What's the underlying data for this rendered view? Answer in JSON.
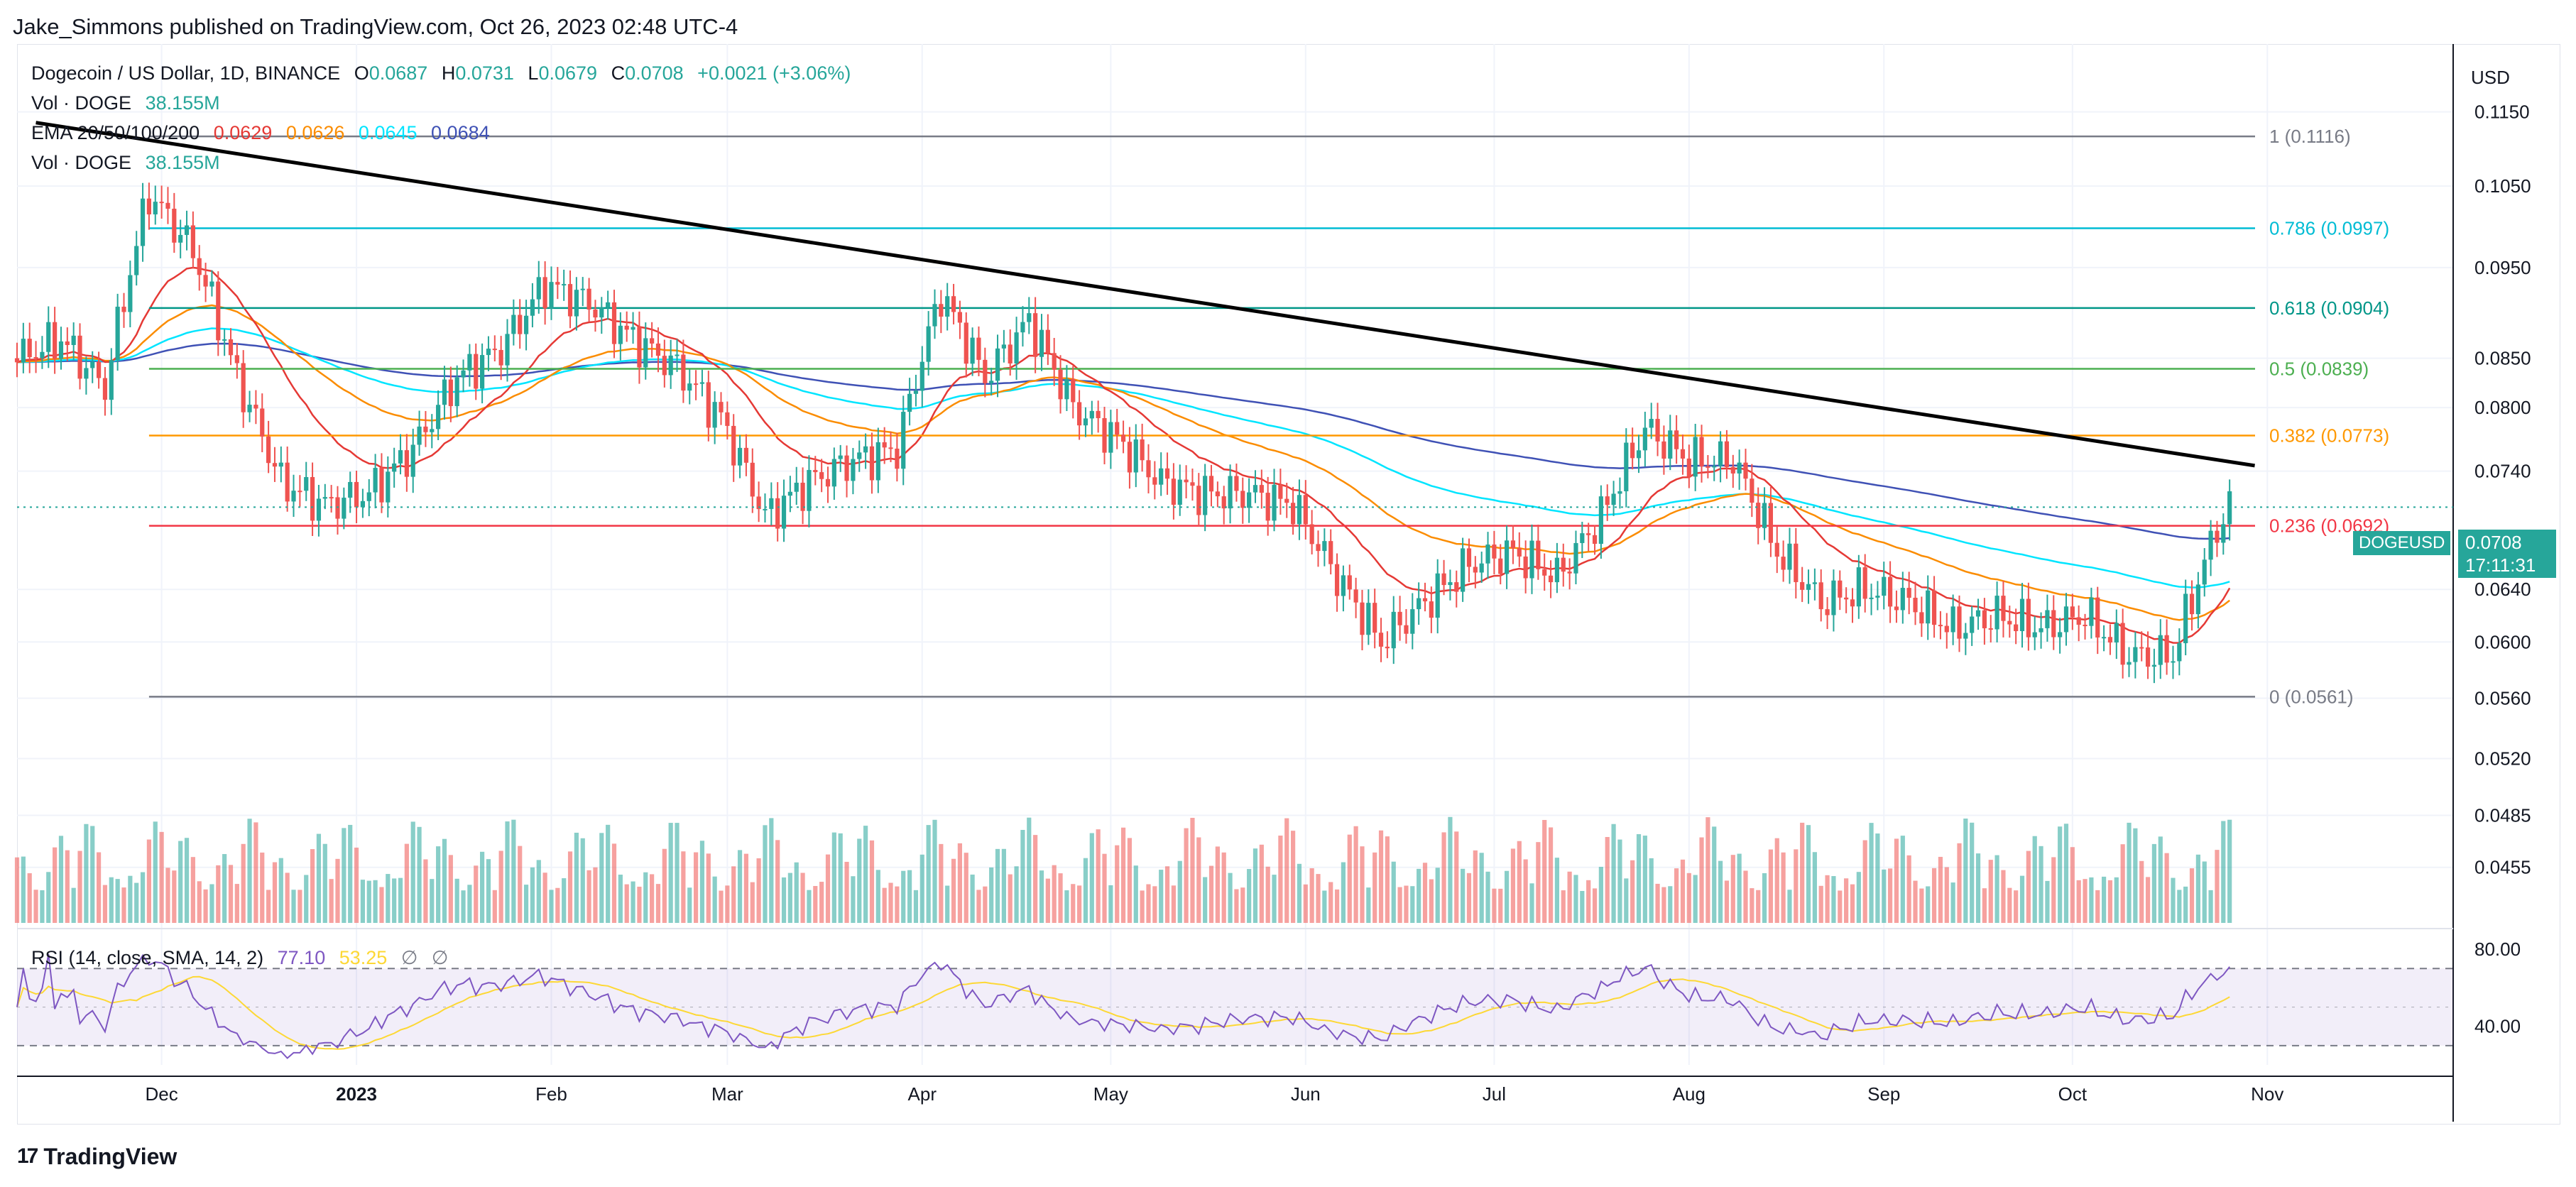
{
  "header": {
    "publisher": "Jake_Simmons published on TradingView.com, Oct 26, 2023 02:48 UTC-4"
  },
  "legend": {
    "symbol": "Dogecoin / US Dollar, 1D, BINANCE",
    "open_label": "O",
    "open": "0.0687",
    "high_label": "H",
    "high": "0.0731",
    "low_label": "L",
    "low": "0.0679",
    "close_label": "C",
    "close": "0.0708",
    "change": "+0.0021 (+3.06%)",
    "vol_label": "Vol · DOGE",
    "vol_value": "38.155M",
    "ema_label": "EMA 20/50/100/200",
    "ema20": "0.0629",
    "ema50": "0.0626",
    "ema100": "0.0645",
    "ema200": "0.0684",
    "rsi_label": "RSI (14, close, SMA, 14, 2)",
    "rsi_value": "77.10",
    "rsi_sma": "53.25",
    "na1": "∅",
    "na2": "∅"
  },
  "axis": {
    "currency": "USD",
    "price_badge_symbol": "DOGEUSD",
    "price_badge_value": "0.0708",
    "price_badge_countdown": "17:11:31"
  },
  "footer": {
    "brand": "TradingView",
    "logo_glyph": "17"
  },
  "colors": {
    "up": "#26a69a",
    "down": "#ef5350",
    "ema20": "#e53935",
    "ema50": "#fb8c00",
    "ema100": "#00e5ff",
    "ema200": "#3f51b5",
    "rsi": "#7e57c2",
    "rsi_sma": "#fdd835",
    "trendline": "#000000"
  },
  "chart_data": {
    "type": "candlestick",
    "title": "Dogecoin / US Dollar, 1D, BINANCE",
    "yscale": "log",
    "ylim": [
      0.0425,
      0.125
    ],
    "y_ticks": [
      "0.1150",
      "0.1050",
      "0.0950",
      "0.0850",
      "0.0800",
      "0.0740",
      "0.0640",
      "0.0600",
      "0.0560",
      "0.0520",
      "0.0485",
      "0.0455"
    ],
    "x_ticks": [
      {
        "label": "Dec",
        "date": "2022-12-01"
      },
      {
        "label": "2023",
        "date": "2023-01-01",
        "bold": true
      },
      {
        "label": "Feb",
        "date": "2023-02-01"
      },
      {
        "label": "Mar",
        "date": "2023-03-01"
      },
      {
        "label": "Apr",
        "date": "2023-04-01"
      },
      {
        "label": "May",
        "date": "2023-05-01"
      },
      {
        "label": "Jun",
        "date": "2023-06-01"
      },
      {
        "label": "Jul",
        "date": "2023-07-01"
      },
      {
        "label": "Aug",
        "date": "2023-08-01"
      },
      {
        "label": "Sep",
        "date": "2023-09-01"
      },
      {
        "label": "Oct",
        "date": "2023-10-01"
      },
      {
        "label": "Nov",
        "date": "2023-11-01"
      }
    ],
    "x_range": [
      "2022-11-08",
      "2023-11-30"
    ],
    "closes_weekly": [
      {
        "date": "2022-11-08",
        "close": 0.085
      },
      {
        "date": "2022-11-15",
        "close": 0.087
      },
      {
        "date": "2022-11-22",
        "close": 0.082
      },
      {
        "date": "2022-11-29",
        "close": 0.104
      },
      {
        "date": "2022-12-06",
        "close": 0.097
      },
      {
        "date": "2022-12-13",
        "close": 0.083
      },
      {
        "date": "2022-12-20",
        "close": 0.073
      },
      {
        "date": "2022-12-27",
        "close": 0.071
      },
      {
        "date": "2023-01-03",
        "close": 0.072
      },
      {
        "date": "2023-01-10",
        "close": 0.076
      },
      {
        "date": "2023-01-17",
        "close": 0.083
      },
      {
        "date": "2023-01-24",
        "close": 0.086
      },
      {
        "date": "2023-01-31",
        "close": 0.093
      },
      {
        "date": "2023-02-07",
        "close": 0.091
      },
      {
        "date": "2023-02-14",
        "close": 0.087
      },
      {
        "date": "2023-02-21",
        "close": 0.084
      },
      {
        "date": "2023-02-28",
        "close": 0.079
      },
      {
        "date": "2023-03-07",
        "close": 0.07
      },
      {
        "date": "2023-03-14",
        "close": 0.073
      },
      {
        "date": "2023-03-21",
        "close": 0.075
      },
      {
        "date": "2023-03-28",
        "close": 0.076
      },
      {
        "date": "2023-04-04",
        "close": 0.092
      },
      {
        "date": "2023-04-11",
        "close": 0.083
      },
      {
        "date": "2023-04-18",
        "close": 0.089
      },
      {
        "date": "2023-04-25",
        "close": 0.08
      },
      {
        "date": "2023-05-02",
        "close": 0.077
      },
      {
        "date": "2023-05-09",
        "close": 0.073
      },
      {
        "date": "2023-05-16",
        "close": 0.072
      },
      {
        "date": "2023-05-23",
        "close": 0.072
      },
      {
        "date": "2023-05-30",
        "close": 0.071
      },
      {
        "date": "2023-06-06",
        "close": 0.065
      },
      {
        "date": "2023-06-13",
        "close": 0.06
      },
      {
        "date": "2023-06-20",
        "close": 0.063
      },
      {
        "date": "2023-06-27",
        "close": 0.066
      },
      {
        "date": "2023-07-04",
        "close": 0.067
      },
      {
        "date": "2023-07-11",
        "close": 0.065
      },
      {
        "date": "2023-07-18",
        "close": 0.07
      },
      {
        "date": "2023-07-25",
        "close": 0.078
      },
      {
        "date": "2023-08-01",
        "close": 0.075
      },
      {
        "date": "2023-08-08",
        "close": 0.075
      },
      {
        "date": "2023-08-15",
        "close": 0.067
      },
      {
        "date": "2023-08-22",
        "close": 0.063
      },
      {
        "date": "2023-08-29",
        "close": 0.064
      },
      {
        "date": "2023-09-05",
        "close": 0.063
      },
      {
        "date": "2023-09-12",
        "close": 0.061
      },
      {
        "date": "2023-09-19",
        "close": 0.062
      },
      {
        "date": "2023-09-26",
        "close": 0.061
      },
      {
        "date": "2023-10-03",
        "close": 0.062
      },
      {
        "date": "2023-10-10",
        "close": 0.059
      },
      {
        "date": "2023-10-17",
        "close": 0.059
      },
      {
        "date": "2023-10-24",
        "close": 0.069
      },
      {
        "date": "2023-10-26",
        "close": 0.0708
      }
    ],
    "fibonacci": [
      {
        "label": "1 (0.1116)",
        "price": 0.1116,
        "color": "#787b86"
      },
      {
        "label": "0.786 (0.0997)",
        "price": 0.0997,
        "color": "#00bcd4"
      },
      {
        "label": "0.618 (0.0904)",
        "price": 0.0904,
        "color": "#009688"
      },
      {
        "label": "0.5 (0.0839)",
        "price": 0.0839,
        "color": "#4caf50"
      },
      {
        "label": "0.382 (0.0773)",
        "price": 0.0773,
        "color": "#ff9800"
      },
      {
        "label": "0.236 (0.0692)",
        "price": 0.0692,
        "color": "#f23645"
      },
      {
        "label": "0 (0.0561)",
        "price": 0.0561,
        "color": "#787b86"
      }
    ],
    "fib_start": "2022-11-29",
    "trendline": [
      {
        "date": "2022-11-11",
        "price": 0.1135
      },
      {
        "date": "2023-10-30",
        "price": 0.0745
      }
    ],
    "rsi_ticks": [
      "80.00",
      "40.00"
    ],
    "rsi_band": [
      70,
      30
    ]
  }
}
